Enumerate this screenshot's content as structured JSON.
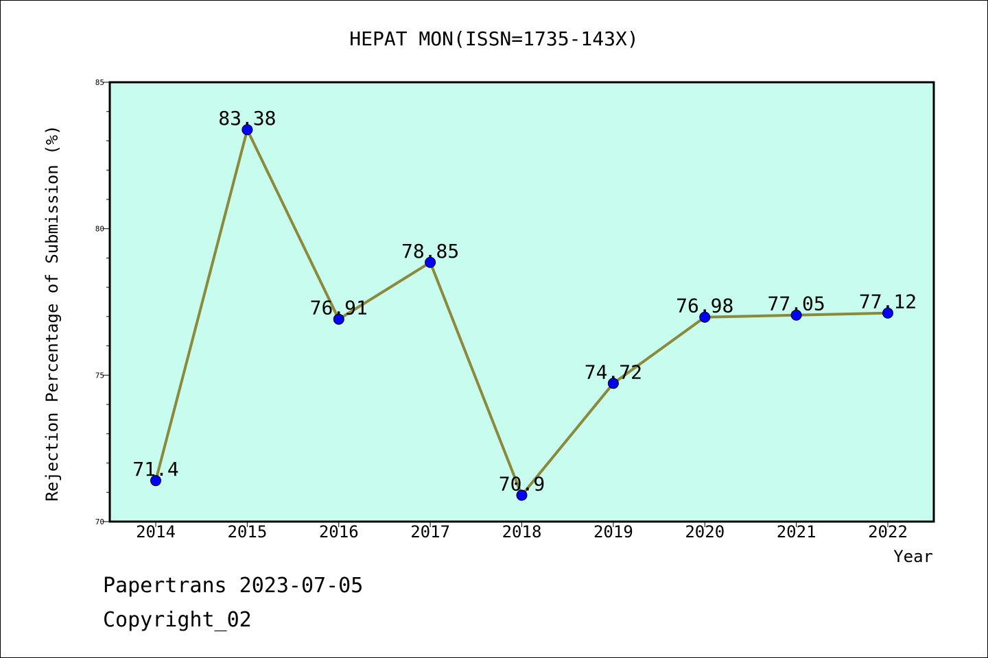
{
  "chart_data": {
    "type": "line",
    "title": "HEPAT MON(ISSN=1735-143X)",
    "xlabel": "Year",
    "ylabel": "Rejection Percentage of Submission (%)",
    "categories": [
      "2014",
      "2015",
      "2016",
      "2017",
      "2018",
      "2019",
      "2020",
      "2021",
      "2022"
    ],
    "series": [
      {
        "values": [
          71.4,
          83.38,
          76.91,
          78.85,
          70.9,
          74.72,
          76.98,
          77.05,
          77.12
        ],
        "labels": [
          "71.4",
          "83.38",
          "76.91",
          "78.85",
          "70.9",
          "74.72",
          "76.98",
          "77.05",
          "77.12"
        ]
      }
    ],
    "ylim": [
      70,
      85
    ],
    "yticks": [
      70,
      75,
      80,
      85
    ],
    "ytick_labels": [
      "70",
      "75",
      "80",
      "85"
    ],
    "grid": false,
    "colors": {
      "plot_background": "#c8fcee",
      "line": "#8b8a3a",
      "marker": "#0000ff"
    }
  },
  "footer": {
    "line1": "Papertrans 2023-07-05",
    "line2": "Copyright_02"
  }
}
